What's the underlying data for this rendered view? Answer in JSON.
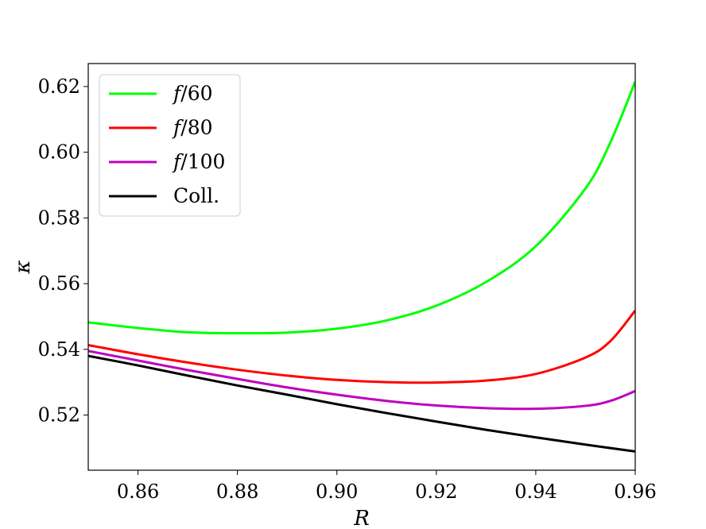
{
  "chart_data": {
    "type": "line",
    "xlabel": "R",
    "ylabel": "κ",
    "xlim": [
      0.85,
      0.96
    ],
    "ylim": [
      0.5032,
      0.627
    ],
    "xticks": [
      0.86,
      0.88,
      0.9,
      0.92,
      0.94,
      0.96
    ],
    "xtick_labels": [
      "0.86",
      "0.88",
      "0.90",
      "0.92",
      "0.94",
      "0.96"
    ],
    "yticks": [
      0.52,
      0.54,
      0.56,
      0.58,
      0.6,
      0.62
    ],
    "ytick_labels": [
      "0.52",
      "0.54",
      "0.56",
      "0.58",
      "0.60",
      "0.62"
    ],
    "grid": false,
    "legend_position": "top-left",
    "series": [
      {
        "name": "f/60",
        "color": "#00ff00",
        "x": [
          0.85,
          0.86,
          0.87,
          0.88,
          0.89,
          0.9,
          0.91,
          0.92,
          0.93,
          0.94,
          0.95,
          0.955,
          0.96
        ],
        "y": [
          0.5482,
          0.5465,
          0.5452,
          0.5449,
          0.5451,
          0.5463,
          0.5488,
          0.5533,
          0.5605,
          0.5714,
          0.589,
          0.603,
          0.6215
        ]
      },
      {
        "name": "f/80",
        "color": "#ff0000",
        "x": [
          0.85,
          0.86,
          0.87,
          0.88,
          0.89,
          0.9,
          0.91,
          0.92,
          0.93,
          0.94,
          0.95,
          0.955,
          0.96
        ],
        "y": [
          0.5413,
          0.5385,
          0.536,
          0.5338,
          0.532,
          0.5307,
          0.53,
          0.5299,
          0.5305,
          0.5325,
          0.5375,
          0.5425,
          0.5518
        ]
      },
      {
        "name": "f/100",
        "color": "#bf00bf",
        "x": [
          0.85,
          0.86,
          0.87,
          0.88,
          0.89,
          0.9,
          0.91,
          0.92,
          0.93,
          0.94,
          0.95,
          0.955,
          0.96
        ],
        "y": [
          0.5395,
          0.5366,
          0.5337,
          0.531,
          0.5284,
          0.5262,
          0.5243,
          0.5229,
          0.5221,
          0.5219,
          0.5228,
          0.5243,
          0.5273
        ]
      },
      {
        "name": "Coll.",
        "color": "#000000",
        "x": [
          0.85,
          0.86,
          0.87,
          0.88,
          0.89,
          0.9,
          0.91,
          0.92,
          0.93,
          0.94,
          0.95,
          0.96
        ],
        "y": [
          0.538,
          0.5351,
          0.532,
          0.529,
          0.5262,
          0.5233,
          0.5206,
          0.518,
          0.5155,
          0.5132,
          0.511,
          0.5089
        ]
      }
    ]
  }
}
